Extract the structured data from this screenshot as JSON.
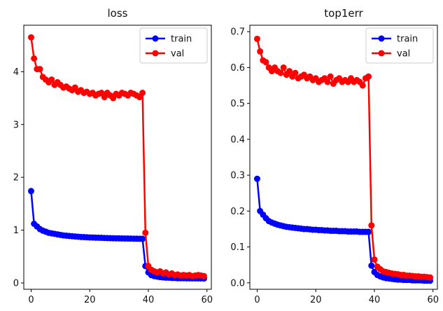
{
  "chart_data": [
    {
      "type": "line",
      "title": "loss",
      "xlim": [
        -2.5,
        61.5
      ],
      "ylim": [
        -0.12,
        4.88
      ],
      "xticks": [
        0,
        20,
        40,
        60
      ],
      "yticks": [
        0,
        1,
        2,
        3,
        4
      ],
      "legend": {
        "placement": "top-right"
      },
      "grid": false,
      "series": [
        {
          "name": "train",
          "color": "#0000ff",
          "marker": "circle",
          "x": [
            0,
            1,
            2,
            3,
            4,
            5,
            6,
            7,
            8,
            9,
            10,
            11,
            12,
            13,
            14,
            15,
            16,
            17,
            18,
            19,
            20,
            21,
            22,
            23,
            24,
            25,
            26,
            27,
            28,
            29,
            30,
            31,
            32,
            33,
            34,
            35,
            36,
            37,
            38,
            39,
            40,
            41,
            42,
            43,
            44,
            45,
            46,
            47,
            48,
            49,
            50,
            51,
            52,
            53,
            54,
            55,
            56,
            57,
            58,
            59
          ],
          "y": [
            1.74,
            1.12,
            1.07,
            1.02,
            0.99,
            0.97,
            0.95,
            0.94,
            0.93,
            0.92,
            0.91,
            0.9,
            0.895,
            0.89,
            0.885,
            0.88,
            0.875,
            0.87,
            0.868,
            0.865,
            0.862,
            0.86,
            0.858,
            0.856,
            0.854,
            0.852,
            0.85,
            0.848,
            0.846,
            0.845,
            0.844,
            0.843,
            0.842,
            0.841,
            0.84,
            0.839,
            0.838,
            0.837,
            0.836,
            0.32,
            0.2,
            0.15,
            0.13,
            0.12,
            0.11,
            0.105,
            0.1,
            0.1,
            0.095,
            0.095,
            0.09,
            0.09,
            0.09,
            0.088,
            0.088,
            0.087,
            0.087,
            0.086,
            0.086,
            0.085
          ]
        },
        {
          "name": "val",
          "color": "#ff0000",
          "marker": "circle",
          "x": [
            0,
            1,
            2,
            3,
            4,
            5,
            6,
            7,
            8,
            9,
            10,
            11,
            12,
            13,
            14,
            15,
            16,
            17,
            18,
            19,
            20,
            21,
            22,
            23,
            24,
            25,
            26,
            27,
            28,
            29,
            30,
            31,
            32,
            33,
            34,
            35,
            36,
            37,
            38,
            39,
            40,
            41,
            42,
            43,
            44,
            45,
            46,
            47,
            48,
            49,
            50,
            51,
            52,
            53,
            54,
            55,
            56,
            57,
            58,
            59
          ],
          "y": [
            4.65,
            4.25,
            4.05,
            4.05,
            3.9,
            3.85,
            3.8,
            3.85,
            3.75,
            3.8,
            3.75,
            3.7,
            3.72,
            3.68,
            3.65,
            3.7,
            3.62,
            3.65,
            3.6,
            3.62,
            3.58,
            3.6,
            3.55,
            3.58,
            3.6,
            3.52,
            3.6,
            3.55,
            3.5,
            3.58,
            3.55,
            3.6,
            3.58,
            3.55,
            3.6,
            3.58,
            3.55,
            3.52,
            3.6,
            0.95,
            0.32,
            0.25,
            0.22,
            0.2,
            0.22,
            0.18,
            0.2,
            0.16,
            0.18,
            0.15,
            0.16,
            0.14,
            0.15,
            0.14,
            0.15,
            0.13,
            0.14,
            0.15,
            0.14,
            0.13
          ]
        }
      ]
    },
    {
      "type": "line",
      "title": "top1err",
      "xlim": [
        -2.5,
        61.5
      ],
      "ylim": [
        -0.018,
        0.718
      ],
      "xticks": [
        0,
        20,
        40,
        60
      ],
      "yticks": [
        0.0,
        0.1,
        0.2,
        0.3,
        0.4,
        0.5,
        0.6,
        0.7
      ],
      "legend": {
        "placement": "top-right"
      },
      "grid": false,
      "series": [
        {
          "name": "train",
          "color": "#0000ff",
          "marker": "circle",
          "x": [
            0,
            1,
            2,
            3,
            4,
            5,
            6,
            7,
            8,
            9,
            10,
            11,
            12,
            13,
            14,
            15,
            16,
            17,
            18,
            19,
            20,
            21,
            22,
            23,
            24,
            25,
            26,
            27,
            28,
            29,
            30,
            31,
            32,
            33,
            34,
            35,
            36,
            37,
            38,
            39,
            40,
            41,
            42,
            43,
            44,
            45,
            46,
            47,
            48,
            49,
            50,
            51,
            52,
            53,
            54,
            55,
            56,
            57,
            58,
            59
          ],
          "y": [
            0.29,
            0.2,
            0.19,
            0.18,
            0.172,
            0.168,
            0.165,
            0.162,
            0.16,
            0.158,
            0.156,
            0.155,
            0.154,
            0.153,
            0.152,
            0.151,
            0.15,
            0.15,
            0.149,
            0.148,
            0.148,
            0.147,
            0.147,
            0.146,
            0.146,
            0.145,
            0.145,
            0.145,
            0.144,
            0.144,
            0.144,
            0.143,
            0.143,
            0.143,
            0.143,
            0.142,
            0.142,
            0.142,
            0.142,
            0.048,
            0.03,
            0.022,
            0.018,
            0.015,
            0.013,
            0.012,
            0.011,
            0.01,
            0.009,
            0.009,
            0.008,
            0.008,
            0.008,
            0.007,
            0.007,
            0.007,
            0.007,
            0.006,
            0.006,
            0.006
          ]
        },
        {
          "name": "val",
          "color": "#ff0000",
          "marker": "circle",
          "x": [
            0,
            1,
            2,
            3,
            4,
            5,
            6,
            7,
            8,
            9,
            10,
            11,
            12,
            13,
            14,
            15,
            16,
            17,
            18,
            19,
            20,
            21,
            22,
            23,
            24,
            25,
            26,
            27,
            28,
            29,
            30,
            31,
            32,
            33,
            34,
            35,
            36,
            37,
            38,
            39,
            40,
            41,
            42,
            43,
            44,
            45,
            46,
            47,
            48,
            49,
            50,
            51,
            52,
            53,
            54,
            55,
            56,
            57,
            58,
            59
          ],
          "y": [
            0.68,
            0.645,
            0.62,
            0.615,
            0.6,
            0.59,
            0.6,
            0.59,
            0.585,
            0.6,
            0.58,
            0.59,
            0.575,
            0.585,
            0.57,
            0.575,
            0.58,
            0.57,
            0.575,
            0.565,
            0.57,
            0.56,
            0.565,
            0.57,
            0.56,
            0.575,
            0.555,
            0.565,
            0.57,
            0.56,
            0.565,
            0.56,
            0.57,
            0.56,
            0.565,
            0.56,
            0.55,
            0.57,
            0.575,
            0.16,
            0.065,
            0.045,
            0.038,
            0.032,
            0.03,
            0.028,
            0.026,
            0.025,
            0.024,
            0.022,
            0.022,
            0.02,
            0.02,
            0.019,
            0.018,
            0.018,
            0.017,
            0.017,
            0.016,
            0.015
          ]
        }
      ]
    }
  ]
}
